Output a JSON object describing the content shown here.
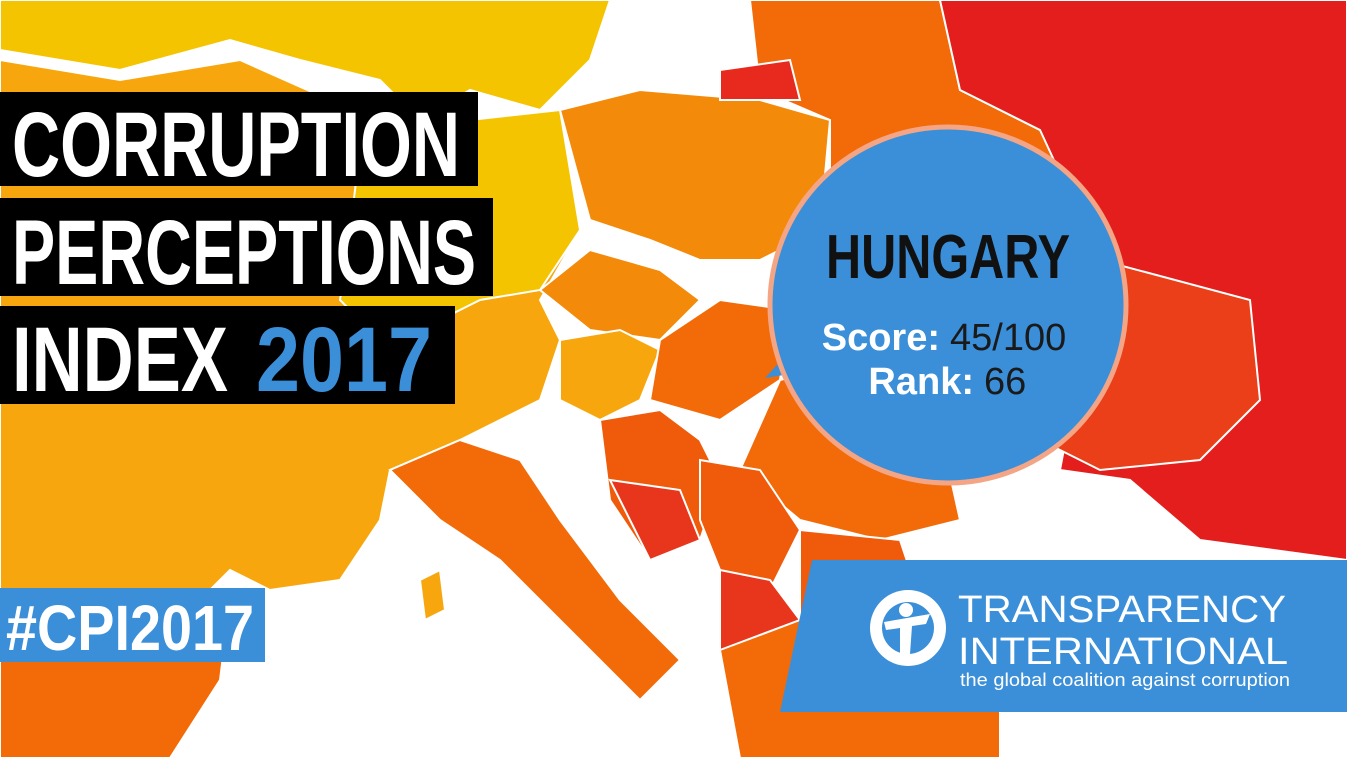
{
  "title": {
    "line1": "CORRUPTION",
    "line2": "PERCEPTIONS",
    "line3": "INDEX",
    "year": "2017"
  },
  "country": {
    "name": "HUNGARY",
    "score_label": "Score:",
    "score": "45/100",
    "rank_label": "Rank:",
    "rank": "66"
  },
  "hashtag": "#CPI2017",
  "organization": {
    "line1": "TRANSPARENCY",
    "line2": "INTERNATIONAL",
    "tagline": "the global coalition against corruption"
  }
}
